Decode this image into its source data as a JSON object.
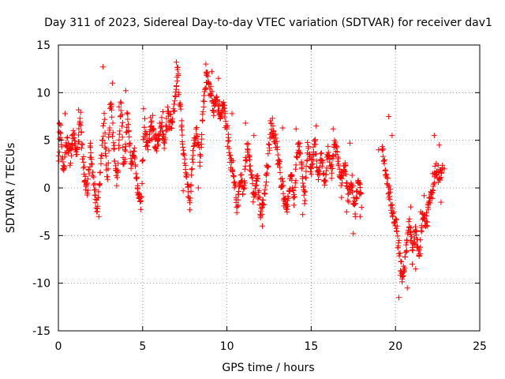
{
  "chart_data": {
    "type": "scatter",
    "title": "Day 311 of 2023, Sidereal Day-to-day VTEC variation (SDTVAR) for receiver dav1",
    "xlabel": "GPS time / hours",
    "ylabel": "SDTVAR / TECUs",
    "xlim": [
      0,
      25
    ],
    "ylim": [
      -15,
      15
    ],
    "xticks": [
      0,
      5,
      10,
      15,
      20,
      25
    ],
    "yticks": [
      -15,
      -10,
      -5,
      0,
      5,
      10,
      15
    ],
    "xtick_labels": [
      "0",
      "5",
      "10",
      "15",
      "20",
      "25"
    ],
    "ytick_labels": [
      "-15",
      "-10",
      "-5",
      "0",
      "5",
      "10",
      "15"
    ],
    "grid": true,
    "legend": "none",
    "marker": "+",
    "color": "#ff0000",
    "x_range_of_data": [
      0,
      23
    ],
    "series": [
      {
        "name": "SDTVAR",
        "trace": [
          [
            0.0,
            2.5
          ],
          [
            0.1,
            6.5
          ],
          [
            0.2,
            4.0
          ],
          [
            0.3,
            1.5
          ],
          [
            0.5,
            5.0
          ],
          [
            0.7,
            3.0
          ],
          [
            0.9,
            6.0
          ],
          [
            1.1,
            3.0
          ],
          [
            1.3,
            7.5
          ],
          [
            1.5,
            2.0
          ],
          [
            1.7,
            -0.5
          ],
          [
            1.9,
            4.0
          ],
          [
            2.1,
            0.5
          ],
          [
            2.3,
            -2.5
          ],
          [
            2.5,
            2.0
          ],
          [
            2.7,
            7.0
          ],
          [
            2.9,
            0.5
          ],
          [
            3.1,
            9.5
          ],
          [
            3.3,
            4.0
          ],
          [
            3.5,
            0.5
          ],
          [
            3.7,
            9.0
          ],
          [
            3.9,
            2.0
          ],
          [
            4.1,
            7.5
          ],
          [
            4.3,
            2.5
          ],
          [
            4.5,
            4.0
          ],
          [
            4.7,
            -0.5
          ],
          [
            4.9,
            -1.5
          ],
          [
            5.0,
            3.0
          ],
          [
            5.1,
            6.5
          ],
          [
            5.3,
            4.0
          ],
          [
            5.5,
            7.0
          ],
          [
            5.7,
            5.0
          ],
          [
            5.9,
            4.5
          ],
          [
            6.1,
            7.0
          ],
          [
            6.3,
            4.5
          ],
          [
            6.5,
            8.0
          ],
          [
            6.7,
            6.5
          ],
          [
            6.9,
            9.0
          ],
          [
            7.1,
            12.5
          ],
          [
            7.2,
            9.0
          ],
          [
            7.4,
            4.0
          ],
          [
            7.6,
            1.5
          ],
          [
            7.8,
            -1.5
          ],
          [
            8.0,
            4.0
          ],
          [
            8.2,
            6.0
          ],
          [
            8.4,
            2.5
          ],
          [
            8.6,
            9.0
          ],
          [
            8.8,
            12.0
          ],
          [
            9.0,
            10.0
          ],
          [
            9.2,
            8.5
          ],
          [
            9.4,
            9.0
          ],
          [
            9.6,
            7.5
          ],
          [
            9.8,
            8.5
          ],
          [
            10.0,
            6.0
          ],
          [
            10.2,
            3.0
          ],
          [
            10.4,
            1.5
          ],
          [
            10.6,
            -2.0
          ],
          [
            10.8,
            1.0
          ],
          [
            11.0,
            -0.5
          ],
          [
            11.2,
            5.0
          ],
          [
            11.4,
            2.0
          ],
          [
            11.6,
            -1.0
          ],
          [
            11.8,
            1.0
          ],
          [
            12.0,
            -3.0
          ],
          [
            12.2,
            -1.0
          ],
          [
            12.4,
            2.0
          ],
          [
            12.6,
            6.5
          ],
          [
            12.8,
            5.5
          ],
          [
            13.0,
            4.0
          ],
          [
            13.2,
            1.0
          ],
          [
            13.4,
            -1.5
          ],
          [
            13.6,
            -2.0
          ],
          [
            13.8,
            1.5
          ],
          [
            14.0,
            -1.0
          ],
          [
            14.2,
            5.0
          ],
          [
            14.4,
            3.0
          ],
          [
            14.6,
            -1.5
          ],
          [
            14.8,
            4.5
          ],
          [
            15.0,
            2.0
          ],
          [
            15.2,
            5.0
          ],
          [
            15.4,
            1.0
          ],
          [
            15.6,
            3.5
          ],
          [
            15.8,
            0.5
          ],
          [
            16.0,
            4.0
          ],
          [
            16.2,
            1.5
          ],
          [
            16.4,
            5.0
          ],
          [
            16.6,
            3.0
          ],
          [
            16.8,
            0.5
          ],
          [
            17.0,
            2.5
          ],
          [
            17.2,
            -1.0
          ],
          [
            17.4,
            0.5
          ],
          [
            17.6,
            -2.5
          ],
          [
            17.8,
            1.0
          ],
          [
            18.0,
            -1.5
          ],
          [
            19.2,
            4.5
          ],
          [
            19.4,
            1.5
          ],
          [
            19.6,
            0.0
          ],
          [
            19.8,
            -2.5
          ],
          [
            20.0,
            -4.0
          ],
          [
            20.2,
            -6.0
          ],
          [
            20.4,
            -10.0
          ],
          [
            20.6,
            -7.0
          ],
          [
            20.8,
            -3.5
          ],
          [
            21.0,
            -6.5
          ],
          [
            21.2,
            -4.5
          ],
          [
            21.4,
            -7.5
          ],
          [
            21.6,
            -3.0
          ],
          [
            21.8,
            -3.5
          ],
          [
            22.0,
            -1.5
          ],
          [
            22.2,
            -0.5
          ],
          [
            22.4,
            2.0
          ],
          [
            22.6,
            1.0
          ],
          [
            22.8,
            2.0
          ]
        ],
        "samples": [
          [
            0.05,
            6.8
          ],
          [
            0.25,
            2.0
          ],
          [
            0.4,
            7.8
          ],
          [
            0.8,
            5.5
          ],
          [
            1.2,
            8.2
          ],
          [
            2.4,
            -3.0
          ],
          [
            2.65,
            12.7
          ],
          [
            3.2,
            11.0
          ],
          [
            3.6,
            8.5
          ],
          [
            4.0,
            10.2
          ],
          [
            4.7,
            0.0
          ],
          [
            5.05,
            8.3
          ],
          [
            5.6,
            7.6
          ],
          [
            6.2,
            8.0
          ],
          [
            7.0,
            13.2
          ],
          [
            7.4,
            -0.3
          ],
          [
            7.8,
            -2.3
          ],
          [
            8.3,
            0.0
          ],
          [
            8.75,
            13.0
          ],
          [
            9.1,
            12.2
          ],
          [
            9.5,
            11.5
          ],
          [
            10.3,
            7.8
          ],
          [
            10.8,
            0.5
          ],
          [
            11.1,
            6.8
          ],
          [
            11.6,
            5.5
          ],
          [
            12.1,
            -4.0
          ],
          [
            12.7,
            7.3
          ],
          [
            13.3,
            6.3
          ],
          [
            14.1,
            6.2
          ],
          [
            14.5,
            -2.8
          ],
          [
            15.3,
            6.5
          ],
          [
            16.3,
            6.2
          ],
          [
            16.8,
            -1.0
          ],
          [
            17.1,
            -2.5
          ],
          [
            17.3,
            4.7
          ],
          [
            17.5,
            -4.8
          ],
          [
            17.9,
            -3.0
          ],
          [
            19.0,
            4.0
          ],
          [
            19.6,
            7.5
          ],
          [
            19.8,
            5.5
          ],
          [
            20.1,
            -4.0
          ],
          [
            20.2,
            -11.5
          ],
          [
            20.4,
            -9.0
          ],
          [
            20.7,
            -10.5
          ],
          [
            20.9,
            -2.0
          ],
          [
            21.0,
            -8.0
          ],
          [
            21.2,
            -8.5
          ],
          [
            21.5,
            -2.5
          ],
          [
            21.7,
            -0.8
          ],
          [
            21.9,
            -4.0
          ],
          [
            22.2,
            1.5
          ],
          [
            22.3,
            5.5
          ],
          [
            22.6,
            4.5
          ],
          [
            22.7,
            -1.5
          ],
          [
            22.9,
            2.0
          ]
        ]
      }
    ]
  }
}
